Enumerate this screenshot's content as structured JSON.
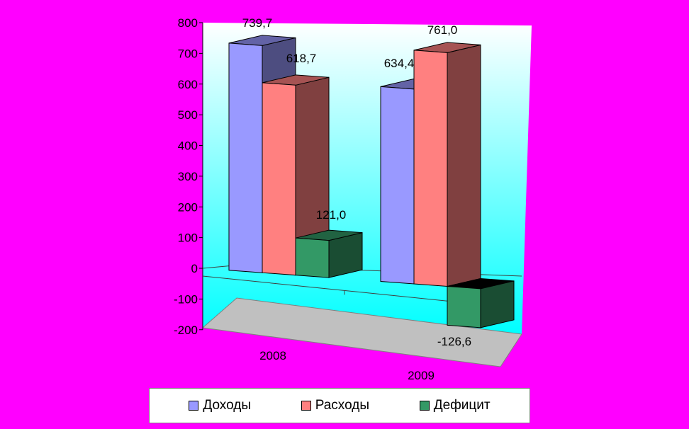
{
  "chart_data": {
    "type": "bar",
    "title": "",
    "xlabel": "",
    "ylabel": "",
    "categories": [
      "2008",
      "2009"
    ],
    "series": [
      {
        "name": "Доходы",
        "values": [
          739.7,
          634.4
        ],
        "labels": [
          "739,7",
          "634,4"
        ],
        "color": "#9999ff"
      },
      {
        "name": "Расходы",
        "values": [
          618.7,
          761.0
        ],
        "labels": [
          "618,7",
          "761,0"
        ],
        "color": "#ff8080"
      },
      {
        "name": "Дефицит",
        "values": [
          121.0,
          -126.6
        ],
        "labels": [
          "121,0",
          "-126,6"
        ],
        "color": "#339966"
      }
    ],
    "ylim": [
      -200,
      800
    ],
    "yticks": [
      -200,
      -100,
      0,
      100,
      200,
      300,
      400,
      500,
      600,
      700,
      800
    ],
    "ytick_labels": [
      "-200",
      "-100",
      "0",
      "100",
      "200",
      "300",
      "400",
      "500",
      "600",
      "700",
      "800"
    ],
    "legend_position": "bottom",
    "grid": false,
    "three_d": true
  }
}
